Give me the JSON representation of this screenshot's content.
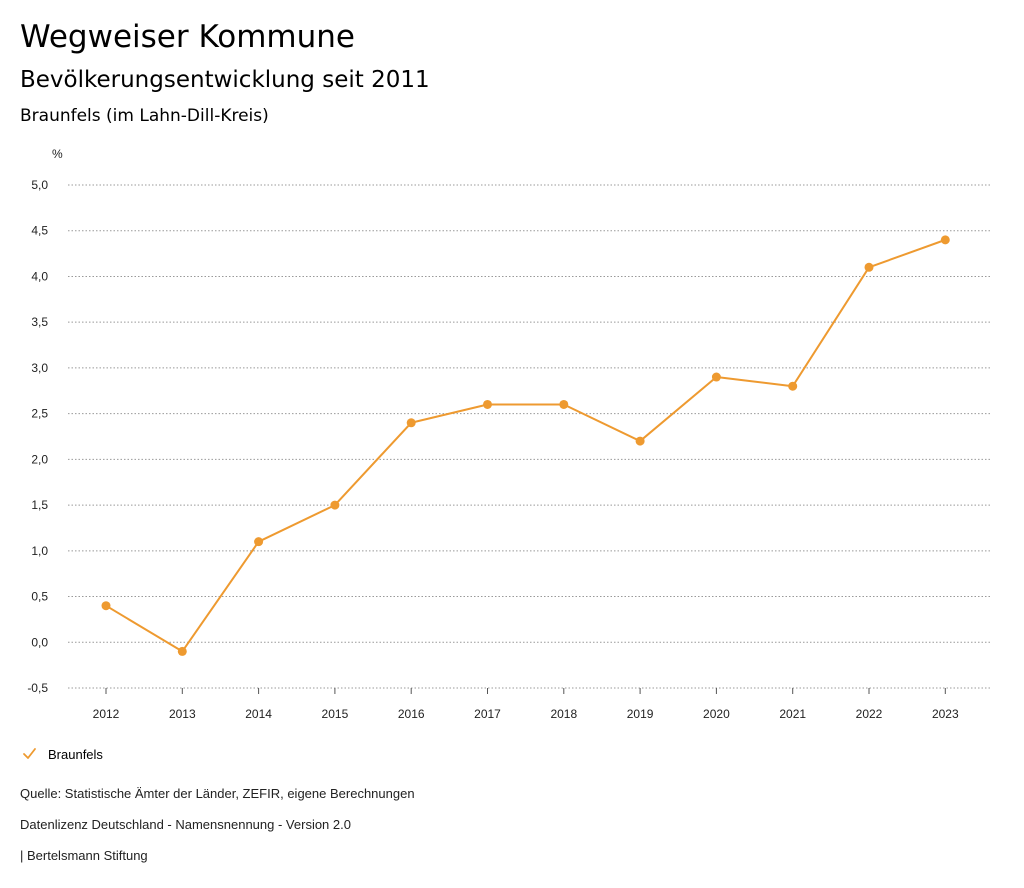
{
  "header": {
    "title": "Wegweiser Kommune",
    "subtitle": "Bevölkerungsentwicklung seit 2011",
    "region": "Braunfels (im Lahn-Dill-Kreis)"
  },
  "colors": {
    "series": "#EE9A30",
    "grid": "#999999",
    "text": "#222222"
  },
  "chart_data": {
    "type": "line",
    "title": "Bevölkerungsentwicklung seit 2011",
    "ylabel": "%",
    "xlabel": "",
    "x": [
      "2012",
      "2013",
      "2014",
      "2015",
      "2016",
      "2017",
      "2018",
      "2019",
      "2020",
      "2021",
      "2022",
      "2023"
    ],
    "series": [
      {
        "name": "Braunfels",
        "values": [
          0.4,
          -0.1,
          1.1,
          1.5,
          2.4,
          2.6,
          2.6,
          2.2,
          2.9,
          2.8,
          4.1,
          4.4
        ]
      }
    ],
    "ylim": [
      -0.5,
      5.0
    ],
    "yticks": [
      -0.5,
      0.0,
      0.5,
      1.0,
      1.5,
      2.0,
      2.5,
      3.0,
      3.5,
      4.0,
      4.5,
      5.0
    ],
    "ytick_labels": [
      "-0,5",
      "0,0",
      "0,5",
      "1,0",
      "1,5",
      "2,0",
      "2,5",
      "3,0",
      "3,5",
      "4,0",
      "4,5",
      "5,0"
    ],
    "grid": true,
    "grid_style": "dotted",
    "legend": "bottom-left",
    "markers": true
  },
  "legend": {
    "label": "Braunfels",
    "icon": "check-icon"
  },
  "footer": {
    "source": "Quelle: Statistische Ämter der Länder, ZEFIR, eigene Berechnungen",
    "license": "Datenlizenz Deutschland - Namensnennung - Version 2.0",
    "publisher": "| Bertelsmann Stiftung"
  }
}
